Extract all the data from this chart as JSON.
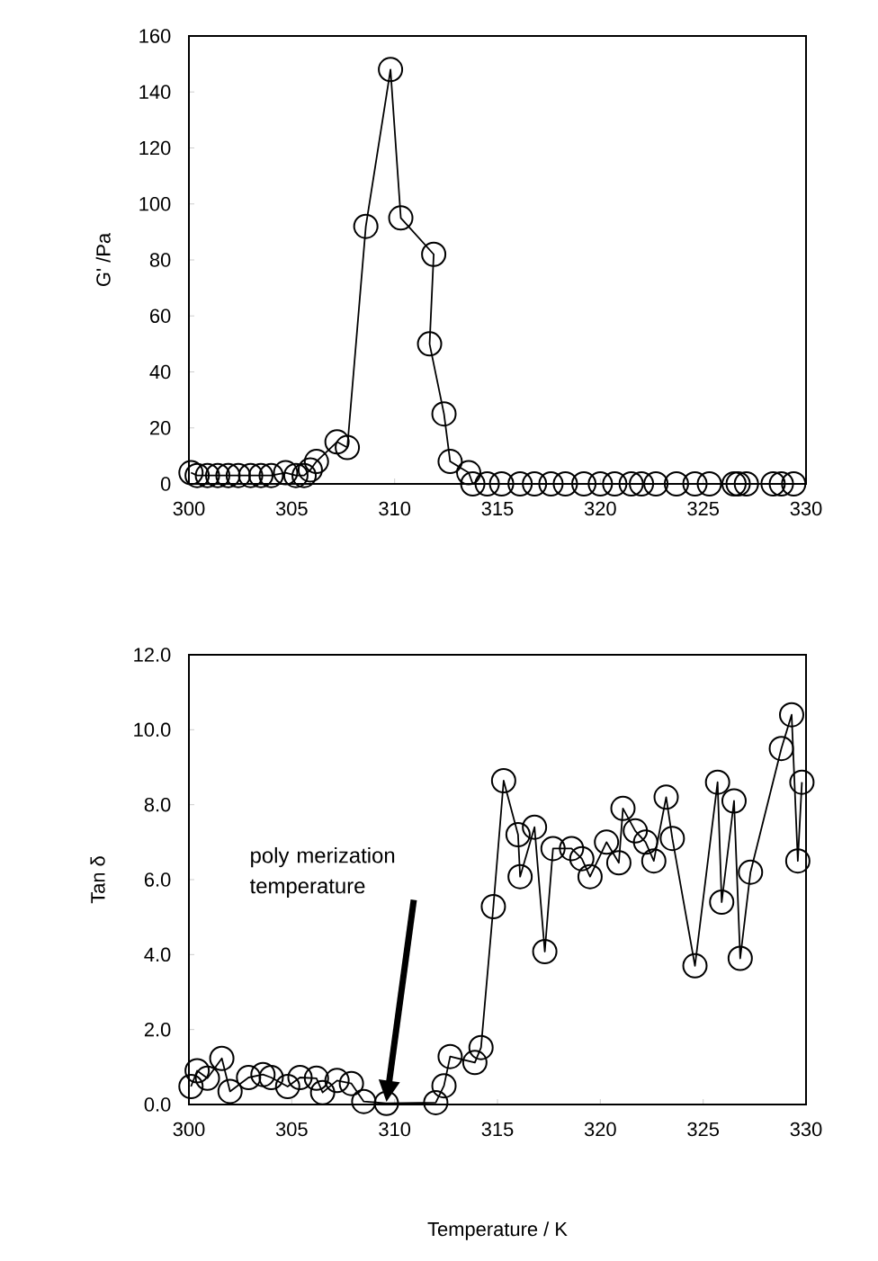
{
  "chart_data": [
    {
      "type": "line",
      "ylabel": "G' /Pa",
      "marker": "circle",
      "line_style": "solid",
      "color": "#000000",
      "x": [
        300.1,
        300.4,
        300.9,
        301.4,
        301.9,
        302.4,
        303.0,
        303.5,
        304.0,
        304.7,
        305.2,
        305.6,
        305.9,
        306.2,
        307.2,
        307.7,
        308.6,
        309.8,
        310.3,
        311.9,
        311.7,
        312.4,
        312.7,
        313.6,
        313.8,
        314.5,
        315.2,
        316.1,
        316.8,
        317.6,
        318.3,
        319.2,
        320.0,
        320.7,
        321.5,
        322.0,
        322.7,
        323.7,
        324.6,
        325.3,
        326.5,
        326.7,
        327.1,
        328.4,
        328.8,
        329.4
      ],
      "values": [
        4,
        3,
        3,
        3,
        3,
        3,
        3,
        3,
        3,
        4,
        3,
        3,
        5,
        8,
        15,
        13,
        92,
        148,
        95,
        82,
        50,
        25,
        8,
        4,
        0,
        0,
        0,
        0,
        0,
        0,
        0,
        0,
        0,
        0,
        0,
        0,
        0,
        0,
        0,
        0,
        0,
        0,
        0,
        0,
        0,
        0
      ],
      "xlim": [
        300,
        330
      ],
      "xticks": [
        300,
        305,
        310,
        315,
        320,
        325,
        330
      ],
      "ylim": [
        0,
        160
      ],
      "yticks": [
        0,
        20,
        40,
        60,
        80,
        100,
        120,
        140,
        160
      ]
    },
    {
      "type": "line",
      "xlabel": "Temperature / K",
      "ylabel": "Tan δ",
      "marker": "circle",
      "line_style": "solid",
      "color": "#000000",
      "x": [
        300.1,
        300.4,
        300.9,
        301.6,
        302.0,
        302.9,
        303.6,
        304.0,
        304.8,
        305.4,
        306.2,
        306.5,
        307.2,
        307.9,
        308.5,
        309.6,
        312.0,
        312.4,
        312.7,
        313.9,
        314.2,
        314.8,
        315.3,
        316.0,
        316.1,
        316.8,
        317.3,
        317.7,
        318.6,
        319.1,
        319.5,
        320.3,
        320.9,
        321.1,
        321.7,
        322.2,
        322.6,
        323.2,
        323.5,
        324.6,
        325.7,
        325.9,
        326.5,
        326.8,
        327.3,
        328.8,
        329.3,
        329.6,
        329.8
      ],
      "values": [
        0.48,
        0.9,
        0.7,
        1.23,
        0.35,
        0.72,
        0.8,
        0.72,
        0.48,
        0.72,
        0.7,
        0.32,
        0.64,
        0.56,
        0.08,
        0.03,
        0.05,
        0.5,
        1.28,
        1.12,
        1.52,
        5.28,
        8.64,
        7.2,
        6.08,
        7.4,
        4.08,
        6.83,
        6.83,
        6.56,
        6.08,
        7.0,
        6.45,
        7.9,
        7.3,
        7.0,
        6.5,
        8.2,
        7.1,
        3.7,
        8.6,
        5.4,
        8.1,
        3.9,
        6.2,
        9.5,
        10.4,
        6.5,
        8.6
      ],
      "xlim": [
        300,
        330
      ],
      "xticks": [
        300,
        305,
        310,
        315,
        320,
        325,
        330
      ],
      "ylim": [
        0,
        12
      ],
      "yticks": [
        {
          "value": 0,
          "label": "0.0"
        },
        {
          "value": 2,
          "label": "2.0"
        },
        {
          "value": 4,
          "label": "4.0"
        },
        {
          "value": 6,
          "label": "6.0"
        },
        {
          "value": 8,
          "label": "8.0"
        },
        {
          "value": 10,
          "label": "10.0"
        },
        {
          "value": 12,
          "label": "12.0"
        }
      ],
      "annotations": [
        "poly merization temperature"
      ]
    }
  ]
}
